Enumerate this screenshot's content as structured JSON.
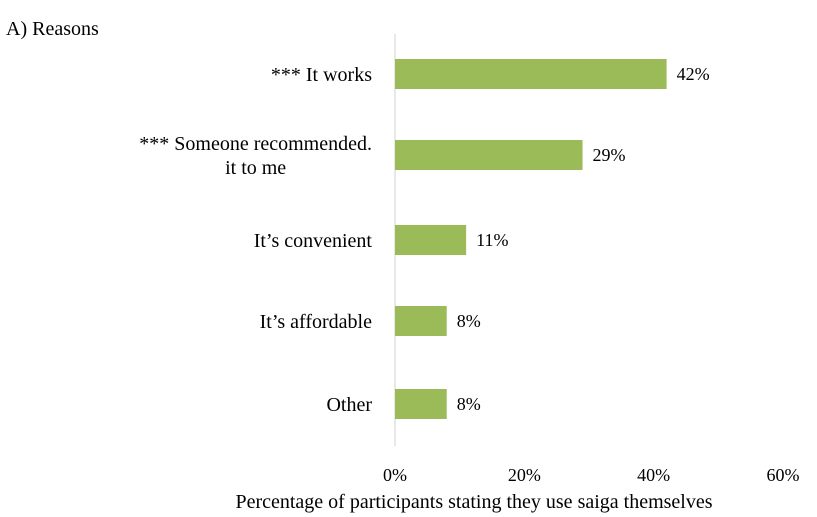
{
  "chart_data": {
    "type": "bar",
    "orientation": "horizontal",
    "title": "A)  Reasons",
    "xlabel": "Percentage of participants stating they use saiga themselves",
    "ylabel": "",
    "categories": [
      [
        "*** It works"
      ],
      [
        "*** Someone recommended.",
        "it to me"
      ],
      [
        "It’s convenient"
      ],
      [
        "It’s affordable"
      ],
      [
        "Other"
      ]
    ],
    "values": [
      42,
      29,
      11,
      8,
      8
    ],
    "value_labels": [
      "42%",
      "29%",
      "11%",
      "8%",
      "8%"
    ],
    "xlim": [
      0,
      60
    ],
    "xticks": [
      0,
      20,
      40,
      60
    ],
    "xtick_labels": [
      "0%",
      "20%",
      "40%",
      "60%"
    ],
    "bar_color": "#9bbb59",
    "axis_color": "#d9d9d9",
    "grid": false,
    "legend": "none"
  }
}
